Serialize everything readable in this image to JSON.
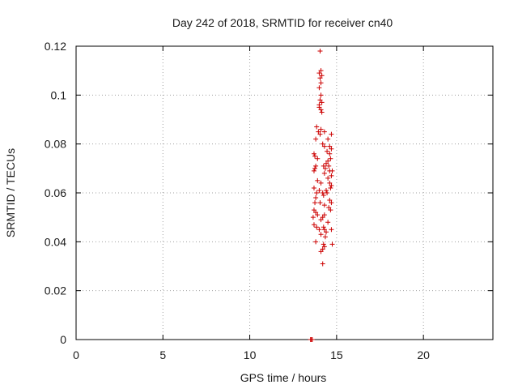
{
  "chart_data": {
    "type": "scatter",
    "title": "Day 242 of 2018, SRMTID for receiver cn40",
    "xlabel": "GPS time / hours",
    "ylabel": "SRMTID / TECUs",
    "xlim": [
      0,
      24
    ],
    "ylim": [
      0,
      0.12
    ],
    "xticks": [
      0,
      5,
      10,
      15,
      20
    ],
    "xtick_labels": [
      "0",
      "5",
      "10",
      "15",
      "20"
    ],
    "yticks": [
      0,
      0.02,
      0.04,
      0.06,
      0.08,
      0.1,
      0.12
    ],
    "ytick_labels": [
      "0",
      "0.02",
      "0.04",
      "0.06",
      "0.08",
      "0.1",
      "0.12"
    ],
    "grid": true,
    "marker": "+",
    "series": [
      {
        "name": "SRMTID",
        "color": "#cc0000",
        "points": [
          [
            13.5,
            0.0
          ],
          [
            13.55,
            0.0
          ],
          [
            13.6,
            0.0
          ],
          [
            14.05,
            0.118
          ],
          [
            14.1,
            0.11
          ],
          [
            14.0,
            0.109
          ],
          [
            14.15,
            0.108
          ],
          [
            14.05,
            0.107
          ],
          [
            14.1,
            0.105
          ],
          [
            14.0,
            0.103
          ],
          [
            14.1,
            0.1
          ],
          [
            14.05,
            0.098
          ],
          [
            14.0,
            0.096
          ],
          [
            14.15,
            0.097
          ],
          [
            14.1,
            0.094
          ],
          [
            14.0,
            0.095
          ],
          [
            14.15,
            0.093
          ],
          [
            13.85,
            0.087
          ],
          [
            13.95,
            0.085
          ],
          [
            14.05,
            0.084
          ],
          [
            14.1,
            0.086
          ],
          [
            14.3,
            0.085
          ],
          [
            14.5,
            0.082
          ],
          [
            14.7,
            0.084
          ],
          [
            13.8,
            0.082
          ],
          [
            14.6,
            0.079
          ],
          [
            14.2,
            0.08
          ],
          [
            13.7,
            0.076
          ],
          [
            13.75,
            0.075
          ],
          [
            14.3,
            0.079
          ],
          [
            14.45,
            0.077
          ],
          [
            14.6,
            0.076
          ],
          [
            14.7,
            0.078
          ],
          [
            13.9,
            0.074
          ],
          [
            14.5,
            0.073
          ],
          [
            14.65,
            0.074
          ],
          [
            13.8,
            0.071
          ],
          [
            13.7,
            0.069
          ],
          [
            13.75,
            0.07
          ],
          [
            14.25,
            0.071
          ],
          [
            14.35,
            0.07
          ],
          [
            14.4,
            0.072
          ],
          [
            14.55,
            0.071
          ],
          [
            14.6,
            0.069
          ],
          [
            14.75,
            0.069
          ],
          [
            14.7,
            0.067
          ],
          [
            14.5,
            0.066
          ],
          [
            14.3,
            0.068
          ],
          [
            13.9,
            0.065
          ],
          [
            14.1,
            0.064
          ],
          [
            14.6,
            0.064
          ],
          [
            14.65,
            0.062
          ],
          [
            14.7,
            0.063
          ],
          [
            14.4,
            0.061
          ],
          [
            13.7,
            0.062
          ],
          [
            13.85,
            0.06
          ],
          [
            14.0,
            0.061
          ],
          [
            14.2,
            0.06
          ],
          [
            14.25,
            0.059
          ],
          [
            14.45,
            0.06
          ],
          [
            13.8,
            0.058
          ],
          [
            14.6,
            0.057
          ],
          [
            14.7,
            0.056
          ],
          [
            13.75,
            0.056
          ],
          [
            14.05,
            0.056
          ],
          [
            14.3,
            0.055
          ],
          [
            14.55,
            0.054
          ],
          [
            14.65,
            0.053
          ],
          [
            13.7,
            0.053
          ],
          [
            13.8,
            0.052
          ],
          [
            13.9,
            0.051
          ],
          [
            14.2,
            0.05
          ],
          [
            14.3,
            0.051
          ],
          [
            13.65,
            0.05
          ],
          [
            14.1,
            0.049
          ],
          [
            14.5,
            0.048
          ],
          [
            13.7,
            0.047
          ],
          [
            13.85,
            0.046
          ],
          [
            14.0,
            0.045
          ],
          [
            14.3,
            0.045
          ],
          [
            14.4,
            0.044
          ],
          [
            14.25,
            0.046
          ],
          [
            14.7,
            0.045
          ],
          [
            14.1,
            0.043
          ],
          [
            14.35,
            0.042
          ],
          [
            13.8,
            0.04
          ],
          [
            14.25,
            0.039
          ],
          [
            14.3,
            0.038
          ],
          [
            14.75,
            0.039
          ],
          [
            14.1,
            0.036
          ],
          [
            14.2,
            0.037
          ],
          [
            14.2,
            0.031
          ]
        ]
      }
    ]
  }
}
